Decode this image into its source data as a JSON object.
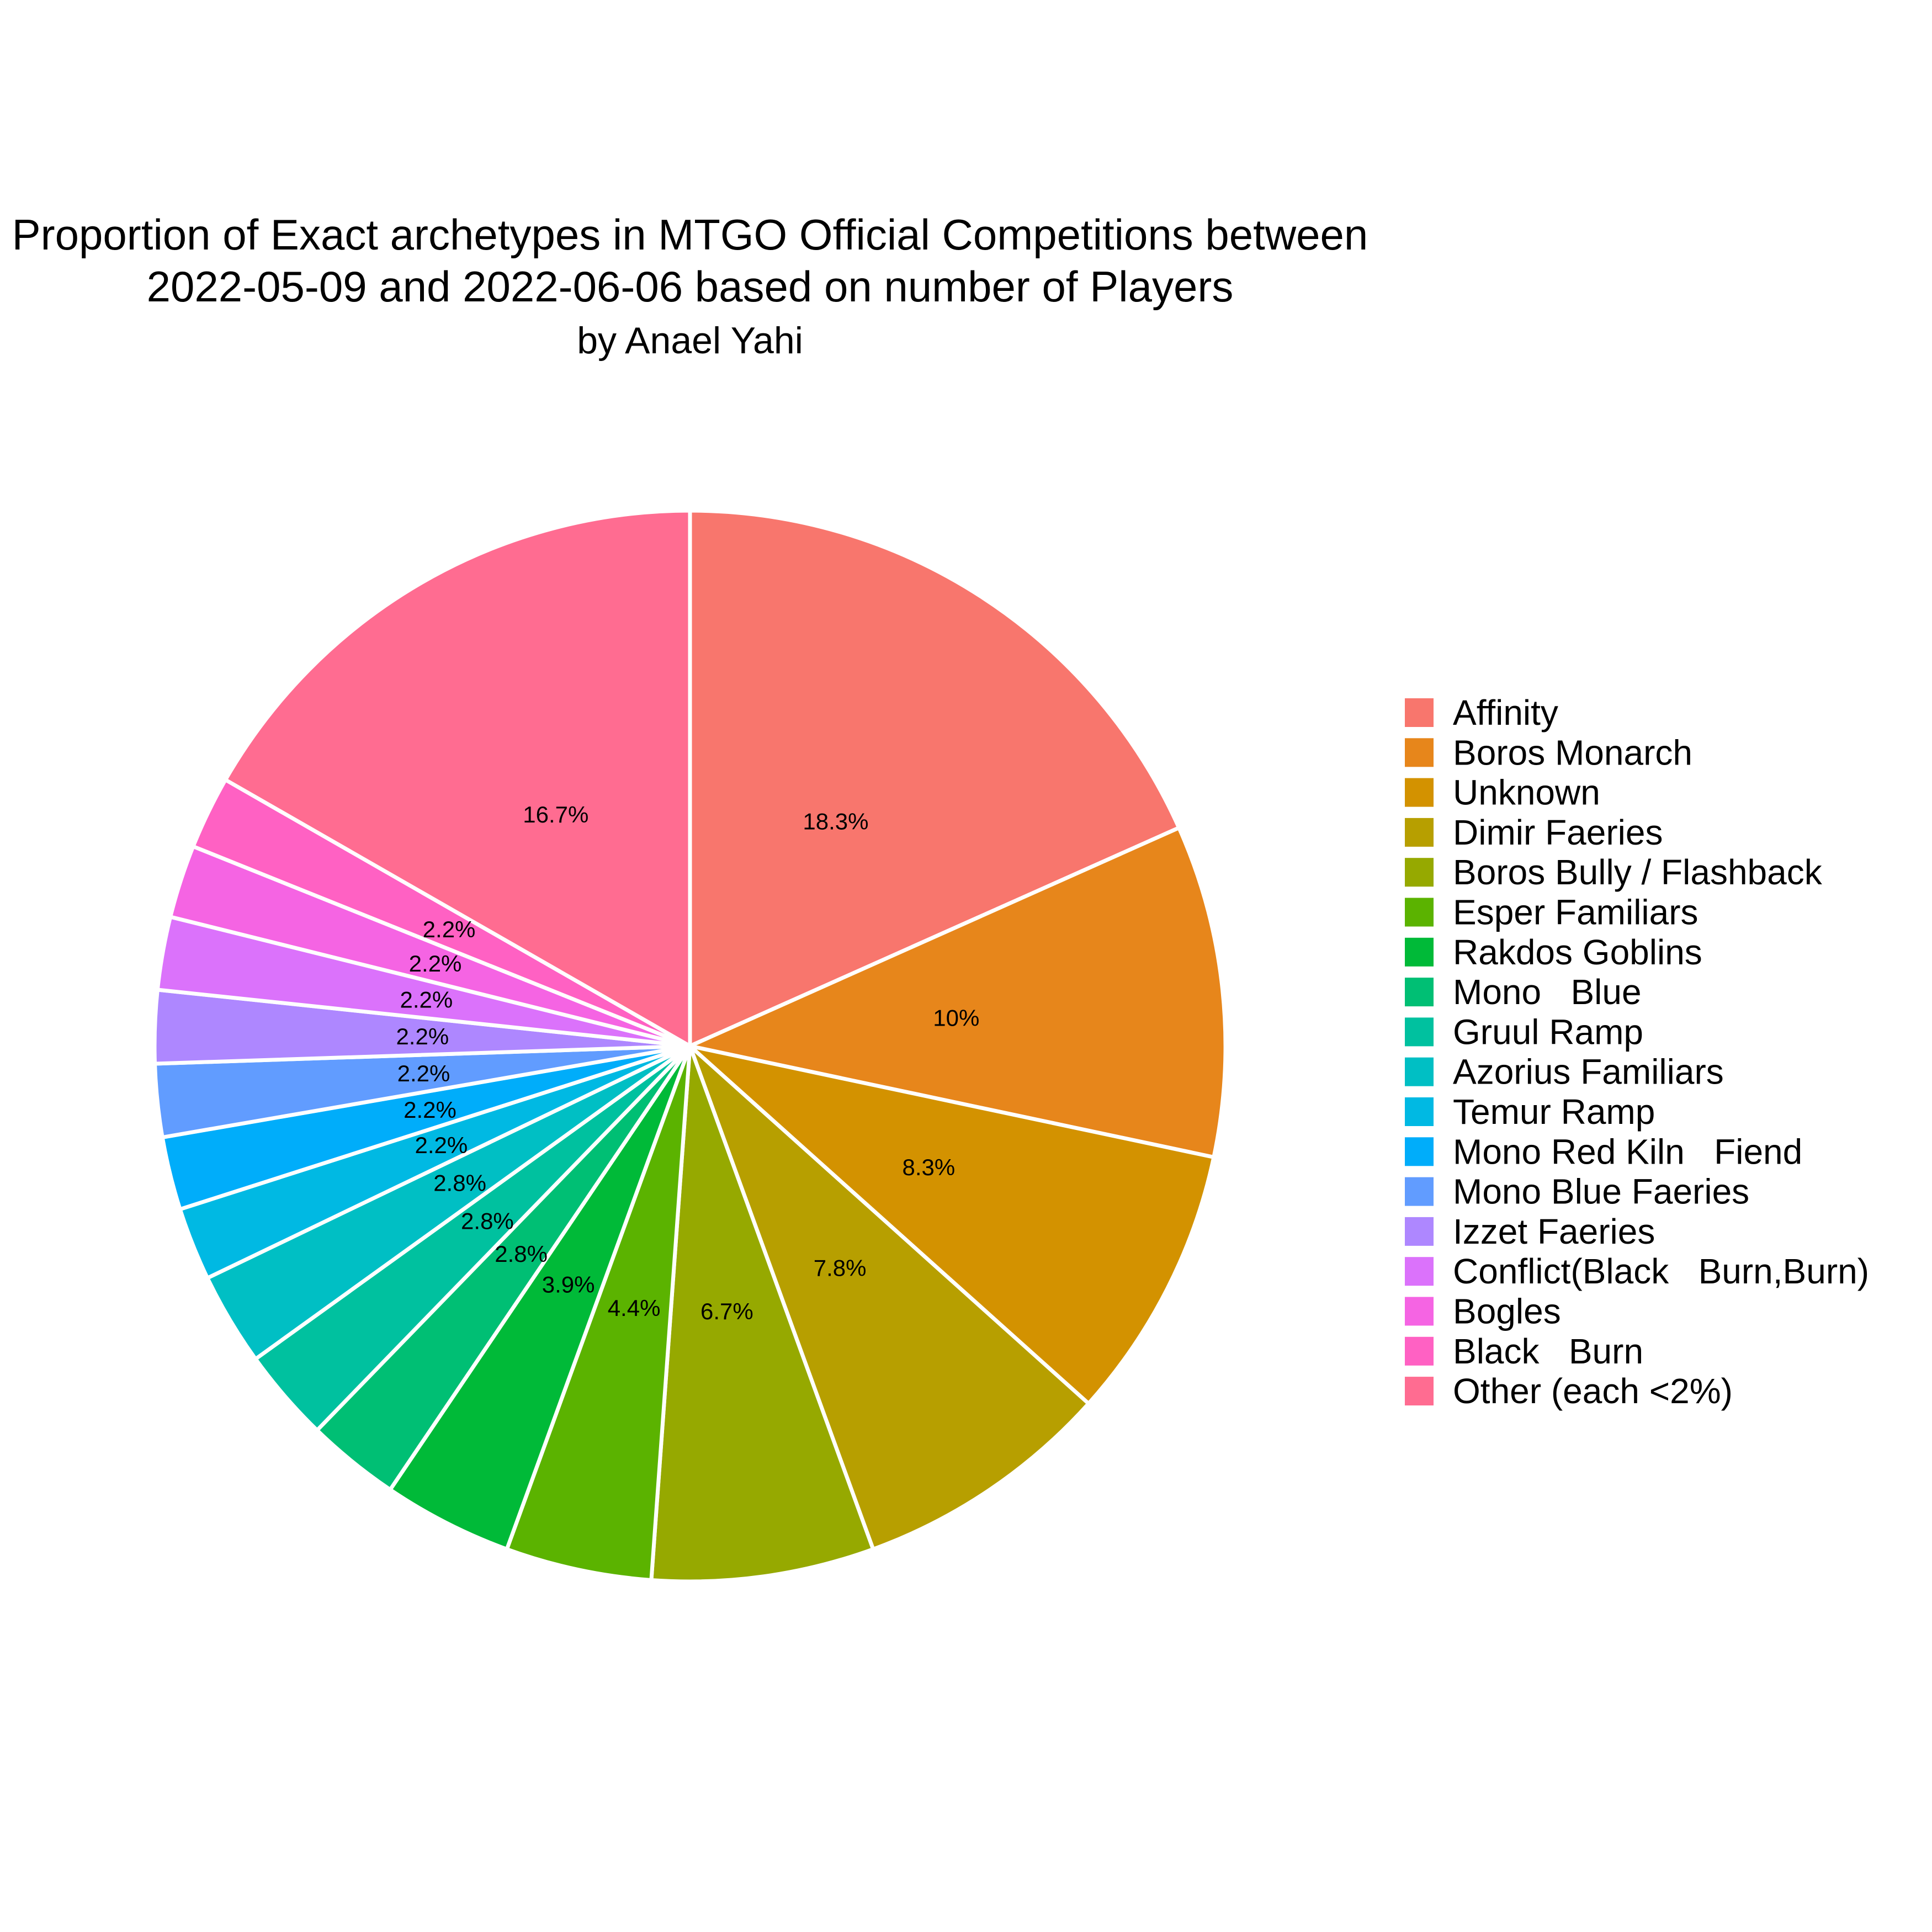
{
  "chart_data": {
    "type": "pie",
    "title": [
      "Proportion of Exact archetypes in MTGO Official Competitions between",
      "2022-05-09 and 2022-06-06 based on number of Players"
    ],
    "subtitle": "by Anael Yahi",
    "direction": "clockwise-from-top",
    "slices": [
      {
        "name": "Affinity",
        "value": 18.3,
        "label": "18.3%",
        "color": "#F8766D"
      },
      {
        "name": "Boros Monarch",
        "value": 10.0,
        "label": "10%",
        "color": "#E7861B"
      },
      {
        "name": "Unknown",
        "value": 8.3,
        "label": "8.3%",
        "color": "#D39200"
      },
      {
        "name": "Dimir Faeries",
        "value": 7.8,
        "label": "7.8%",
        "color": "#B79F00"
      },
      {
        "name": "Boros Bully / Flashback",
        "value": 6.7,
        "label": "6.7%",
        "color": "#96A900"
      },
      {
        "name": "Esper Familiars",
        "value": 4.4,
        "label": "4.4%",
        "color": "#5BB300"
      },
      {
        "name": "Rakdos Goblins",
        "value": 3.9,
        "label": "3.9%",
        "color": "#00BA38"
      },
      {
        "name": "Mono   Blue",
        "value": 2.8,
        "label": "2.8%",
        "color": "#00BF74"
      },
      {
        "name": "Gruul Ramp",
        "value": 2.8,
        "label": "2.8%",
        "color": "#00C19F"
      },
      {
        "name": "Azorius Familiars",
        "value": 2.8,
        "label": "2.8%",
        "color": "#00BFC4"
      },
      {
        "name": "Temur Ramp",
        "value": 2.2,
        "label": "2.2%",
        "color": "#00B9E3"
      },
      {
        "name": "Mono Red Kiln   Fiend",
        "value": 2.2,
        "label": "2.2%",
        "color": "#00ADFA"
      },
      {
        "name": "Mono Blue Faeries",
        "value": 2.2,
        "label": "2.2%",
        "color": "#619CFF"
      },
      {
        "name": "Izzet Faeries",
        "value": 2.2,
        "label": "2.2%",
        "color": "#AE87FF"
      },
      {
        "name": "Conflict(Black   Burn,Burn)",
        "value": 2.2,
        "label": "2.2%",
        "color": "#DB72FB"
      },
      {
        "name": "Bogles",
        "value": 2.2,
        "label": "2.2%",
        "color": "#F564E3"
      },
      {
        "name": "Black   Burn",
        "value": 2.2,
        "label": "2.2%",
        "color": "#FF61C3"
      },
      {
        "name": "Other (each <2%)",
        "value": 16.7,
        "label": "16.7%",
        "color": "#FF6C91"
      }
    ],
    "legend_position": "right",
    "slice_border_color": "#FFFFFF"
  }
}
